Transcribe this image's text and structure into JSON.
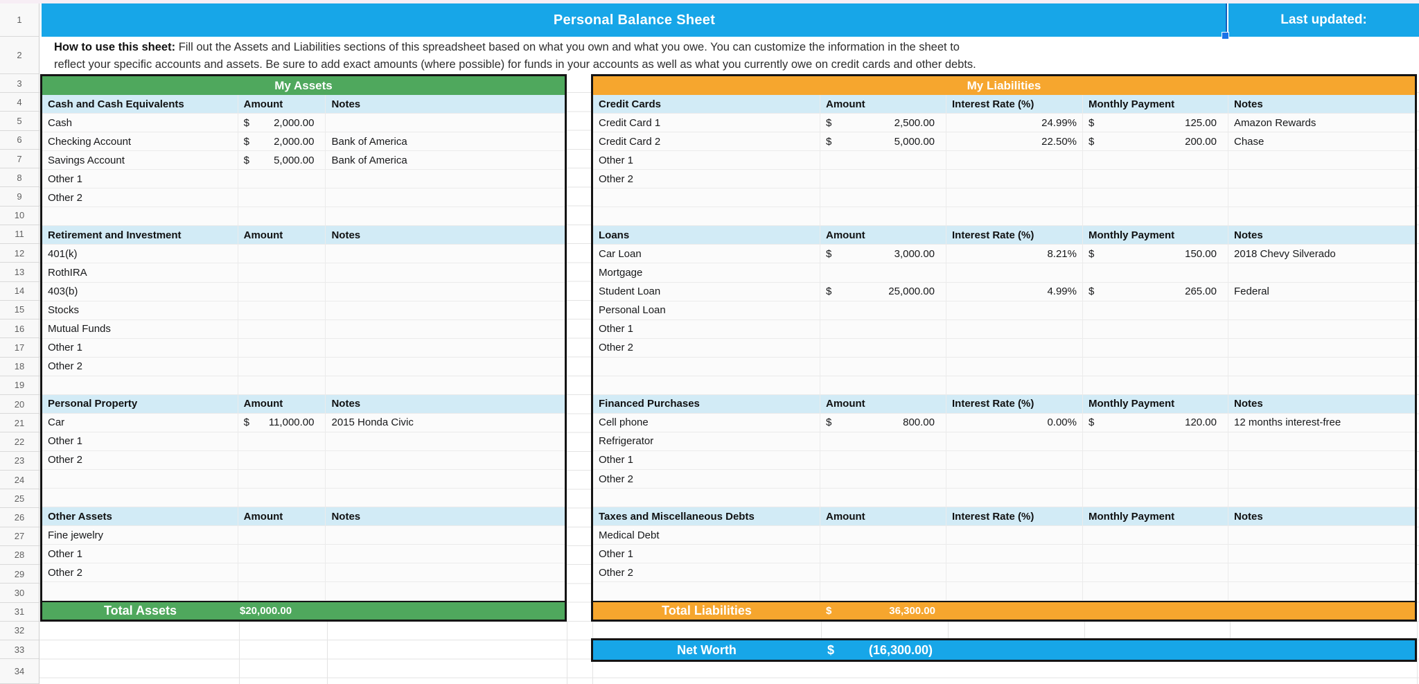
{
  "colors": {
    "blue": "#17a6e8",
    "green": "#4fa85d",
    "orange": "#f6a62e",
    "section_header_bg": "#d2ebf6",
    "selection_blue": "#1a73e8"
  },
  "title_row": {
    "title": "Personal Balance Sheet",
    "last_updated": "Last updated:"
  },
  "instructions": {
    "label": "How to use this sheet:",
    "line1": " Fill out the Assets and Liabilities sections of this spreadsheet based on what you own and what you owe. You can customize the information in the sheet to",
    "line2": "reflect your specific accounts and assets. Be sure to add exact amounts (where possible) for funds in your accounts as well as what you currently owe on credit cards and other debts."
  },
  "row_numbers": [
    1,
    2,
    3,
    4,
    5,
    6,
    7,
    8,
    9,
    10,
    11,
    12,
    13,
    14,
    15,
    16,
    17,
    18,
    19,
    20,
    21,
    22,
    23,
    24,
    25,
    26,
    27,
    28,
    29,
    30,
    31,
    32,
    33,
    34
  ],
  "assets": {
    "title": "My Assets",
    "currency": "$",
    "rows": [
      {
        "t": "head",
        "cells": [
          "Cash and Cash Equivalents",
          "Amount",
          "Notes"
        ]
      },
      {
        "t": "data",
        "name": "Cash",
        "amount": "2,000.00",
        "notes": ""
      },
      {
        "t": "data",
        "name": "Checking Account",
        "amount": "2,000.00",
        "notes": "Bank of America"
      },
      {
        "t": "data",
        "name": "Savings Account",
        "amount": "5,000.00",
        "notes": "Bank of America"
      },
      {
        "t": "data",
        "name": "Other 1",
        "amount": "",
        "notes": ""
      },
      {
        "t": "data",
        "name": "Other 2",
        "amount": "",
        "notes": ""
      },
      {
        "t": "blank"
      },
      {
        "t": "head",
        "cells": [
          "Retirement and Investment",
          "Amount",
          "Notes"
        ]
      },
      {
        "t": "data",
        "name": "401(k)",
        "amount": "",
        "notes": ""
      },
      {
        "t": "data",
        "name": "RothIRA",
        "amount": "",
        "notes": ""
      },
      {
        "t": "data",
        "name": "403(b)",
        "amount": "",
        "notes": ""
      },
      {
        "t": "data",
        "name": "Stocks",
        "amount": "",
        "notes": ""
      },
      {
        "t": "data",
        "name": "Mutual Funds",
        "amount": "",
        "notes": ""
      },
      {
        "t": "data",
        "name": "Other 1",
        "amount": "",
        "notes": ""
      },
      {
        "t": "data",
        "name": "Other 2",
        "amount": "",
        "notes": ""
      },
      {
        "t": "blank"
      },
      {
        "t": "head",
        "cells": [
          "Personal Property",
          "Amount",
          "Notes"
        ]
      },
      {
        "t": "data",
        "name": "Car",
        "amount": "11,000.00",
        "notes": "2015 Honda Civic"
      },
      {
        "t": "data",
        "name": "Other 1",
        "amount": "",
        "notes": ""
      },
      {
        "t": "data",
        "name": "Other 2",
        "amount": "",
        "notes": ""
      },
      {
        "t": "blank"
      },
      {
        "t": "blank"
      },
      {
        "t": "head",
        "cells": [
          "Other Assets",
          "Amount",
          "Notes"
        ]
      },
      {
        "t": "data",
        "name": "Fine jewelry",
        "amount": "",
        "notes": ""
      },
      {
        "t": "data",
        "name": "Other 1",
        "amount": "",
        "notes": ""
      },
      {
        "t": "data",
        "name": "Other 2",
        "amount": "",
        "notes": ""
      },
      {
        "t": "blank"
      },
      {
        "t": "total",
        "label": "Total Assets",
        "value": "$20,000.00"
      }
    ]
  },
  "liabilities": {
    "title": "My Liabilities",
    "currency": "$",
    "rows": [
      {
        "t": "head",
        "cells": [
          "Credit Cards",
          "Amount",
          "Interest Rate (%)",
          "Monthly Payment",
          "Notes"
        ]
      },
      {
        "t": "data",
        "name": "Credit Card 1",
        "amount": "2,500.00",
        "rate": "24.99%",
        "payment": "125.00",
        "notes": "Amazon Rewards"
      },
      {
        "t": "data",
        "name": "Credit Card 2",
        "amount": "5,000.00",
        "rate": "22.50%",
        "payment": "200.00",
        "notes": "Chase"
      },
      {
        "t": "data",
        "name": "Other 1",
        "amount": "",
        "rate": "",
        "payment": "",
        "notes": ""
      },
      {
        "t": "data",
        "name": "Other 2",
        "amount": "",
        "rate": "",
        "payment": "",
        "notes": ""
      },
      {
        "t": "blank"
      },
      {
        "t": "blank"
      },
      {
        "t": "head",
        "cells": [
          "Loans",
          "Amount",
          "Interest Rate (%)",
          "Monthly Payment",
          "Notes"
        ]
      },
      {
        "t": "data",
        "name": "Car Loan",
        "amount": "3,000.00",
        "rate": "8.21%",
        "payment": "150.00",
        "notes": "2018 Chevy Silverado"
      },
      {
        "t": "data",
        "name": "Mortgage",
        "amount": "",
        "rate": "",
        "payment": "",
        "notes": ""
      },
      {
        "t": "data",
        "name": "Student Loan",
        "amount": "25,000.00",
        "rate": "4.99%",
        "payment": "265.00",
        "notes": "Federal"
      },
      {
        "t": "data",
        "name": "Personal Loan",
        "amount": "",
        "rate": "",
        "payment": "",
        "notes": ""
      },
      {
        "t": "data",
        "name": "Other 1",
        "amount": "",
        "rate": "",
        "payment": "",
        "notes": ""
      },
      {
        "t": "data",
        "name": "Other 2",
        "amount": "",
        "rate": "",
        "payment": "",
        "notes": ""
      },
      {
        "t": "blank"
      },
      {
        "t": "blank"
      },
      {
        "t": "head",
        "cells": [
          "Financed Purchases",
          "Amount",
          "Interest Rate (%)",
          "Monthly Payment",
          "Notes"
        ]
      },
      {
        "t": "data",
        "name": "Cell phone",
        "amount": "800.00",
        "rate": "0.00%",
        "payment": "120.00",
        "notes": "12 months interest-free"
      },
      {
        "t": "data",
        "name": "Refrigerator",
        "amount": "",
        "rate": "",
        "payment": "",
        "notes": ""
      },
      {
        "t": "data",
        "name": "Other 1",
        "amount": "",
        "rate": "",
        "payment": "",
        "notes": ""
      },
      {
        "t": "data",
        "name": "Other 2",
        "amount": "",
        "rate": "",
        "payment": "",
        "notes": ""
      },
      {
        "t": "blank"
      },
      {
        "t": "head",
        "cells": [
          "Taxes and Miscellaneous Debts",
          "Amount",
          "Interest Rate (%)",
          "Monthly Payment",
          "Notes"
        ]
      },
      {
        "t": "data",
        "name": "Medical Debt",
        "amount": "",
        "rate": "",
        "payment": "",
        "notes": ""
      },
      {
        "t": "data",
        "name": "Other 1",
        "amount": "",
        "rate": "",
        "payment": "",
        "notes": ""
      },
      {
        "t": "data",
        "name": "Other 2",
        "amount": "",
        "rate": "",
        "payment": "",
        "notes": ""
      },
      {
        "t": "blank"
      },
      {
        "t": "total",
        "label": "Total Liabilities",
        "currency": "$",
        "value": "36,300.00"
      }
    ]
  },
  "net_worth": {
    "label": "Net Worth",
    "currency": "$",
    "value": "(16,300.00)"
  }
}
